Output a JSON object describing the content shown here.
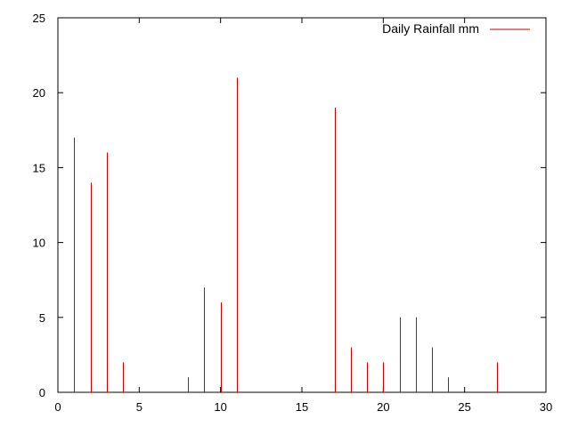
{
  "chart_data": {
    "type": "bar",
    "style": "impulses",
    "series": [
      {
        "name": "Daily Rainfall mm",
        "color": "#cc0000",
        "x": [
          1,
          2,
          3,
          4,
          8,
          9,
          10,
          11,
          17,
          18,
          19,
          20,
          21,
          22,
          23,
          24,
          27
        ],
        "values": [
          17,
          14,
          16,
          2,
          1,
          7,
          6,
          21,
          19,
          3,
          2,
          2,
          5,
          5,
          3,
          1,
          2
        ]
      }
    ],
    "xlim": [
      0,
      30
    ],
    "ylim": [
      0,
      25
    ],
    "xticks": [
      "0",
      "5",
      "10",
      "15",
      "20",
      "25",
      "30"
    ],
    "yticks": [
      "0",
      "5",
      "10",
      "15",
      "20",
      "25"
    ],
    "grid": false,
    "legend_position": "top-right",
    "title": "",
    "xlabel": "",
    "ylabel": ""
  }
}
